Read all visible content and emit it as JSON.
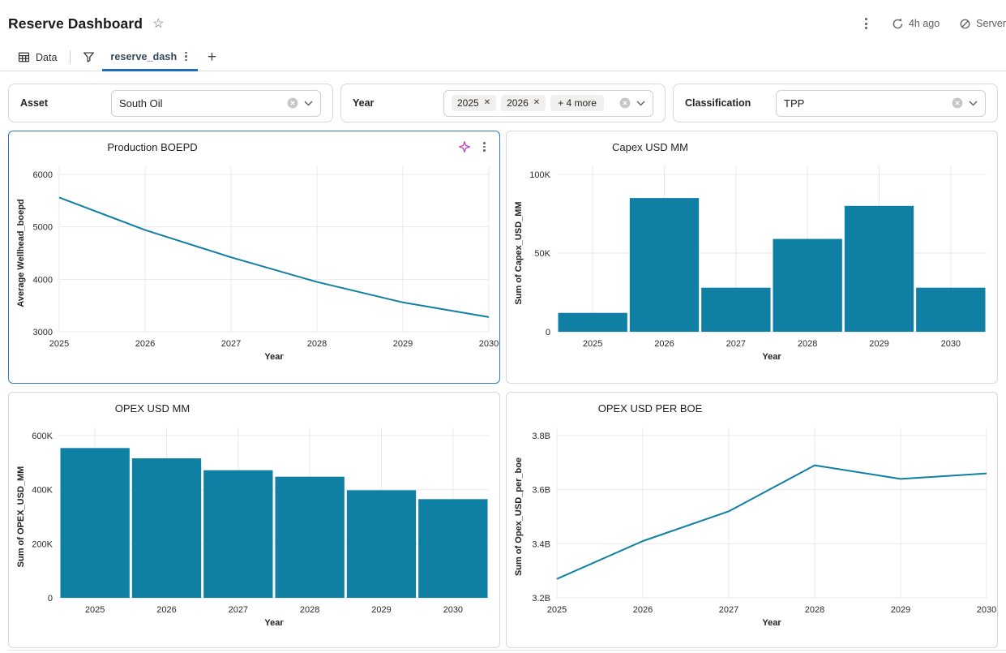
{
  "header": {
    "title": "Reserve Dashboard",
    "last_refresh": "4h ago",
    "server_label": "Server"
  },
  "tabs": {
    "data_label": "Data",
    "sheet_label": "reserve_dash"
  },
  "filters": {
    "asset": {
      "label": "Asset",
      "value": "South Oil"
    },
    "year": {
      "label": "Year",
      "chips": [
        "2025",
        "2026"
      ],
      "more_label": "+ 4 more"
    },
    "classification": {
      "label": "Classification",
      "value": "TPP"
    }
  },
  "colors": {
    "accent": "#1e6db6",
    "series": "#0f7fa3",
    "selected_border": "#2e7cc4",
    "card_border": "#d9d7d5",
    "grid": "#e8e8e8",
    "tick_text": "#2b2b2b",
    "axis_title_text": "#222222"
  },
  "chart_data": [
    {
      "type": "line",
      "title": "Production BOEPD",
      "categories": [
        "2025",
        "2026",
        "2027",
        "2028",
        "2029",
        "2030"
      ],
      "values": [
        5560,
        4940,
        4420,
        3950,
        3560,
        3280
      ],
      "xlabel": "Year",
      "ylabel": "Average Wellhead_boepd",
      "ylim": [
        3000,
        6000
      ],
      "yticks": [
        3000,
        4000,
        5000,
        6000
      ],
      "ytick_labels": [
        "3000",
        "4000",
        "5000",
        "6000"
      ],
      "grid": true,
      "selected": true
    },
    {
      "type": "bar",
      "title": "Capex USD MM",
      "categories": [
        "2025",
        "2026",
        "2027",
        "2028",
        "2029",
        "2030"
      ],
      "values": [
        12000,
        85000,
        28000,
        59000,
        80000,
        28000
      ],
      "xlabel": "Year",
      "ylabel": "Sum of Capex_USD_MM",
      "ylim": [
        0,
        100000
      ],
      "yticks": [
        0,
        50000,
        100000
      ],
      "ytick_labels": [
        "0",
        "50K",
        "100K"
      ],
      "grid": true
    },
    {
      "type": "bar",
      "title": "OPEX USD MM",
      "categories": [
        "2025",
        "2026",
        "2027",
        "2028",
        "2029",
        "2030"
      ],
      "values": [
        554000,
        516000,
        472000,
        448000,
        398000,
        365000
      ],
      "xlabel": "Year",
      "ylabel": "Sum of OPEX_USD_MM",
      "ylim": [
        0,
        600000
      ],
      "yticks": [
        0,
        200000,
        400000,
        600000
      ],
      "ytick_labels": [
        "0",
        "200K",
        "400K",
        "600K"
      ],
      "grid": true
    },
    {
      "type": "line",
      "title": "OPEX USD PER BOE",
      "categories": [
        "2025",
        "2026",
        "2027",
        "2028",
        "2029",
        "2030"
      ],
      "values": [
        3.27,
        3.41,
        3.52,
        3.69,
        3.64,
        3.66
      ],
      "xlabel": "Year",
      "ylabel": "Sum of Opex_USD_per_boe",
      "ylim": [
        3.2,
        3.8
      ],
      "yticks": [
        3.2,
        3.4,
        3.6,
        3.8
      ],
      "ytick_labels": [
        "3.2B",
        "3.4B",
        "3.6B",
        "3.8B"
      ],
      "grid": true
    }
  ]
}
